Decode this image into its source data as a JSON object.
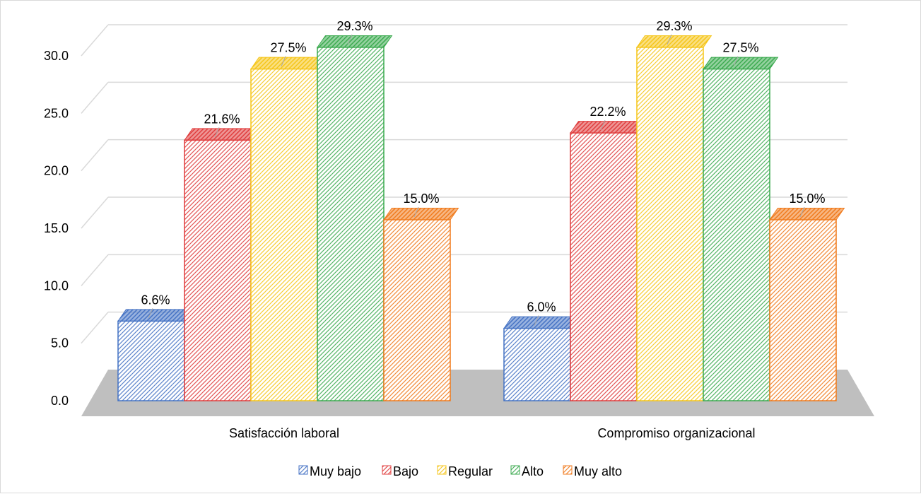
{
  "chart_data": {
    "type": "bar",
    "style": "3d-clustered-column",
    "categories": [
      "Satisfacción laboral",
      "Compromiso organizacional"
    ],
    "series": [
      {
        "name": "Muy bajo",
        "color": "#4472C4",
        "values": [
          6.6,
          6.0
        ],
        "labels": [
          "6.6%",
          "6.0%"
        ]
      },
      {
        "name": "Bajo",
        "color": "#E03C3C",
        "values": [
          21.6,
          22.2
        ],
        "labels": [
          "21.6%",
          "22.2%"
        ]
      },
      {
        "name": "Regular",
        "color": "#F5C518",
        "values": [
          27.5,
          29.3
        ],
        "labels": [
          "27.5%",
          "29.3%"
        ]
      },
      {
        "name": "Alto",
        "color": "#3BAA4F",
        "values": [
          29.3,
          27.5
        ],
        "labels": [
          "29.3%",
          "27.5%"
        ]
      },
      {
        "name": "Muy alto",
        "color": "#F07A1C",
        "values": [
          15.0,
          15.0
        ],
        "labels": [
          "15.0%",
          "15.0%"
        ]
      }
    ],
    "y_ticks": [
      "0.0",
      "5.0",
      "10.0",
      "15.0",
      "20.0",
      "25.0",
      "30.0"
    ],
    "ylim": [
      0,
      30
    ],
    "grid": true,
    "legend_position": "bottom",
    "floor_color": "#bfbfbf",
    "gridline_color": "#d9d9d9"
  }
}
